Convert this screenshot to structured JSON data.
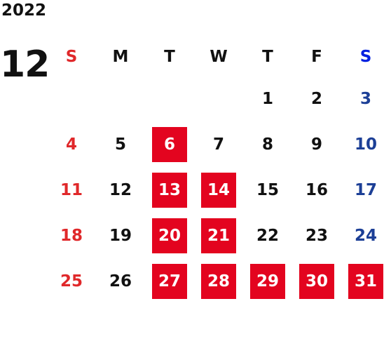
{
  "year": "2022",
  "month": "12",
  "weekdays": [
    "S",
    "M",
    "T",
    "W",
    "T",
    "F",
    "S"
  ],
  "weeks": [
    [
      "",
      "",
      "",
      "",
      "1",
      "2",
      "3"
    ],
    [
      "4",
      "5",
      "6",
      "7",
      "8",
      "9",
      "10"
    ],
    [
      "11",
      "12",
      "13",
      "14",
      "15",
      "16",
      "17"
    ],
    [
      "18",
      "19",
      "20",
      "21",
      "22",
      "23",
      "24"
    ],
    [
      "25",
      "26",
      "27",
      "28",
      "29",
      "30",
      "31"
    ]
  ],
  "highlighted_days": [
    "6",
    "13",
    "14",
    "20",
    "21",
    "27",
    "28",
    "29",
    "30",
    "31"
  ],
  "colors": {
    "sunday": "#e0282a",
    "saturday": "#1c3f96",
    "highlight": "#e3041f",
    "text": "#111111"
  }
}
